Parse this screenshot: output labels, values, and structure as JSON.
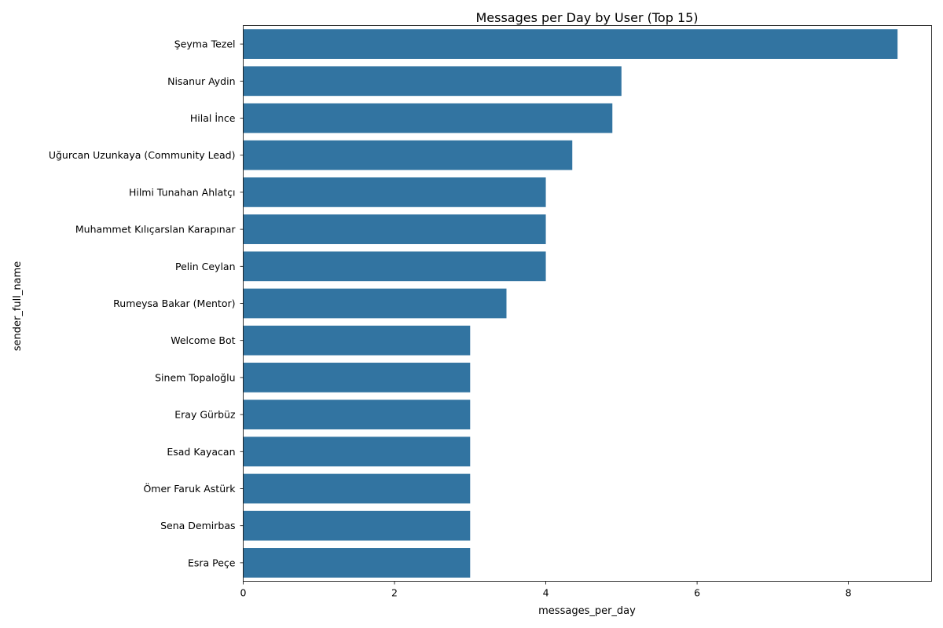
{
  "chart_data": {
    "type": "bar",
    "orientation": "horizontal",
    "title": "Messages per Day by User (Top 15)",
    "xlabel": "messages_per_day",
    "ylabel": "sender_full_name",
    "xlim": [
      0,
      9.1
    ],
    "xticks": [
      0,
      2,
      4,
      6,
      8
    ],
    "grid": false,
    "bar_color": "#3274a1",
    "categories": [
      "Şeyma Tezel",
      "Nisanur Aydin",
      "Hilal İnce",
      "Uğurcan Uzunkaya (Community Lead)",
      "Hilmi Tunahan Ahlatçı",
      "Muhammet Kılıçarslan Karapınar",
      "Pelin Ceylan",
      "Rumeysa Bakar (Mentor)",
      "Welcome Bot",
      "Sinem Topaloğlu",
      "Eray Gürbüz",
      "Esad Kayacan",
      "Ömer Faruk Astürk",
      "Sena Demirbas",
      "Esra Peçe"
    ],
    "values": [
      8.65,
      5.0,
      4.88,
      4.35,
      4.0,
      4.0,
      4.0,
      3.48,
      3.0,
      3.0,
      3.0,
      3.0,
      3.0,
      3.0,
      3.0
    ]
  }
}
